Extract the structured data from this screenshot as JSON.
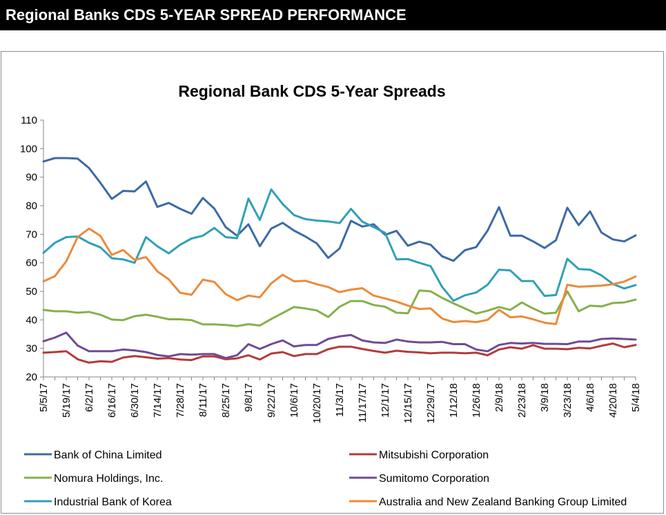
{
  "header": {
    "title": "Regional Banks CDS 5-YEAR SPREAD PERFORMANCE"
  },
  "colors": {
    "header_bg": "#000000",
    "bank_of_china": "#3d6aa6",
    "mitsubishi": "#b33b3b",
    "nomura": "#86b04a",
    "sumitomo": "#6f4b95",
    "ibk": "#2fa0b8",
    "anz": "#ec8a3a"
  },
  "chart_data": {
    "type": "line",
    "title": "Regional Bank CDS 5-Year Spreads",
    "xlabel": "",
    "ylabel": "",
    "ylim": [
      20,
      110
    ],
    "yticks": [
      "20",
      "30",
      "40",
      "50",
      "60",
      "70",
      "80",
      "90",
      "100",
      "110"
    ],
    "grid": false,
    "legend_position": "bottom",
    "x": [
      "5/5/17",
      "5/12/17",
      "5/19/17",
      "5/26/17",
      "6/2/17",
      "6/9/17",
      "6/16/17",
      "6/23/17",
      "6/30/17",
      "7/7/17",
      "7/14/17",
      "7/21/17",
      "7/28/17",
      "8/4/17",
      "8/11/17",
      "8/18/17",
      "8/25/17",
      "9/1/17",
      "9/8/17",
      "9/15/17",
      "9/22/17",
      "9/29/17",
      "10/6/17",
      "10/13/17",
      "10/20/17",
      "10/27/17",
      "11/3/17",
      "11/10/17",
      "11/17/17",
      "11/24/17",
      "12/1/17",
      "12/8/17",
      "12/15/17",
      "12/22/17",
      "12/29/17",
      "1/5/18",
      "1/12/18",
      "1/19/18",
      "1/26/18",
      "2/2/18",
      "2/9/18",
      "2/16/18",
      "2/23/18",
      "3/2/18",
      "3/9/18",
      "3/16/18",
      "3/23/18",
      "3/30/18",
      "4/6/18",
      "4/13/18",
      "4/20/18",
      "4/27/18",
      "5/4/18"
    ],
    "x_tick_labels": [
      "5/5/17",
      "5/19/17",
      "6/2/17",
      "6/16/17",
      "6/30/17",
      "7/14/17",
      "7/28/17",
      "8/11/17",
      "8/25/17",
      "9/8/17",
      "9/22/17",
      "10/6/17",
      "10/20/17",
      "11/3/17",
      "11/17/17",
      "12/1/17",
      "12/15/17",
      "12/29/17",
      "1/12/18",
      "1/26/18",
      "2/9/18",
      "2/23/18",
      "3/9/18",
      "3/23/18",
      "4/6/18",
      "4/20/18",
      "5/4/18"
    ],
    "series": [
      {
        "name": "Bank of China Limited",
        "color": "#3d6aa6",
        "values": [
          95.5,
          96.7,
          96.7,
          96.5,
          93.2,
          88,
          82.4,
          85.2,
          85,
          88.5,
          79.6,
          81,
          78.9,
          77.2,
          82.7,
          79,
          72.5,
          69.5,
          73.5,
          65.8,
          72,
          74,
          71.3,
          69.2,
          66.8,
          61.7,
          65,
          74.7,
          72.7,
          73.5,
          69.8,
          71.2,
          66,
          67.4,
          66.3,
          62.3,
          60.7,
          64.4,
          65.5,
          71.3,
          79.5,
          69.5,
          69.5,
          67.5,
          65.2,
          67.9,
          79.3,
          73.2,
          78,
          70.6,
          68.2,
          67.5,
          69.6
        ]
      },
      {
        "name": "Mitsubishi Corporation",
        "color": "#b33b3b",
        "values": [
          28.5,
          28.7,
          29,
          26.2,
          25,
          25.5,
          25.3,
          26.8,
          27.3,
          26.9,
          26.4,
          26.6,
          26.1,
          25.9,
          27.2,
          27.2,
          26.2,
          26.5,
          27.6,
          26.1,
          28.2,
          28.7,
          27.3,
          28,
          28,
          29.7,
          30.6,
          30.6,
          29.8,
          29.1,
          28.5,
          29.2,
          28.8,
          28.6,
          28.3,
          28.5,
          28.5,
          28.3,
          28.5,
          27.6,
          29.6,
          30.4,
          29.9,
          31.1,
          29.9,
          29.9,
          29.7,
          30.2,
          30,
          30.9,
          31.7,
          30.4,
          31.2
        ]
      },
      {
        "name": "Nomura Holdings, Inc.",
        "color": "#86b04a",
        "values": [
          43.5,
          43,
          43,
          42.5,
          42.8,
          41.8,
          40.1,
          39.9,
          41.3,
          41.8,
          41.1,
          40.2,
          40.2,
          39.9,
          38.4,
          38.4,
          38.2,
          37.8,
          38.5,
          38,
          40.3,
          42.4,
          44.5,
          44,
          43.3,
          41,
          44.6,
          46.6,
          46.6,
          45.2,
          44.6,
          42.5,
          42.3,
          50.3,
          50,
          47.7,
          45.8,
          44,
          42.2,
          43.2,
          44.5,
          43.5,
          46.1,
          44,
          42.2,
          42.5,
          50,
          43,
          45,
          44.7,
          45.9,
          46.1,
          47.1
        ]
      },
      {
        "name": "Sumitomo Corporation",
        "color": "#6f4b95",
        "values": [
          32.5,
          33.8,
          35.5,
          31,
          29,
          29,
          29,
          29.6,
          29.3,
          28.7,
          27.7,
          27.2,
          28,
          27.8,
          28,
          28,
          26.6,
          27.6,
          31.5,
          29.8,
          31.5,
          32.8,
          30.7,
          31.2,
          31.2,
          33.3,
          34.2,
          34.7,
          32.8,
          32.1,
          31.9,
          33.1,
          32.4,
          32.1,
          32.1,
          32.3,
          31.5,
          31.5,
          29.6,
          29,
          31.2,
          31.9,
          31.7,
          31.9,
          31.6,
          31.6,
          31.5,
          32.4,
          32.4,
          33.3,
          33.5,
          33.3,
          33.1
        ]
      },
      {
        "name": "Industrial Bank of Korea",
        "color": "#2fa0b8",
        "values": [
          63.5,
          67,
          69,
          69.2,
          67,
          65.4,
          61.6,
          61.2,
          60,
          69,
          65.8,
          63.3,
          66.3,
          68.5,
          69.5,
          72.2,
          69,
          68.6,
          82.5,
          75,
          85.7,
          80.6,
          76.7,
          75.3,
          74.8,
          74.5,
          73.9,
          78.9,
          74.4,
          72.5,
          70.5,
          61.2,
          61.3,
          60,
          58.8,
          51.6,
          46.7,
          48.6,
          49.6,
          52.3,
          57.6,
          57.3,
          53.6,
          53.6,
          48.4,
          48.7,
          61.4,
          57.8,
          57.6,
          55.6,
          52.6,
          51,
          52.2
        ]
      },
      {
        "name": "Australia and New Zealand Banking Group Limited",
        "color": "#ec8a3a",
        "values": [
          53.5,
          55.3,
          60.5,
          69,
          72,
          69.4,
          62.8,
          64.5,
          61,
          62,
          57,
          54.2,
          49.5,
          48.8,
          54.1,
          53.3,
          49,
          46.9,
          48.5,
          47.9,
          52.8,
          55.8,
          53.5,
          53.7,
          52.5,
          51.5,
          49.7,
          50.6,
          51.1,
          48.5,
          47.5,
          46.4,
          45,
          43.8,
          44,
          40.5,
          39.2,
          39.6,
          39.2,
          40,
          43.5,
          40.9,
          41.2,
          40.2,
          39,
          38.5,
          52.3,
          51.6,
          51.8,
          52,
          52.5,
          53.4,
          55.2
        ]
      }
    ]
  }
}
